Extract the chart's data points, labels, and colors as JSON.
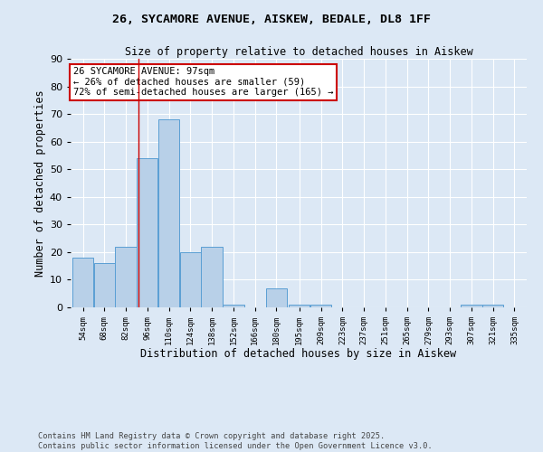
{
  "title1": "26, SYCAMORE AVENUE, AISKEW, BEDALE, DL8 1FF",
  "title2": "Size of property relative to detached houses in Aiskew",
  "xlabel": "Distribution of detached houses by size in Aiskew",
  "ylabel": "Number of detached properties",
  "bins": [
    54,
    68,
    82,
    96,
    110,
    124,
    138,
    152,
    166,
    180,
    195,
    209,
    223,
    237,
    251,
    265,
    279,
    293,
    307,
    321,
    335
  ],
  "counts": [
    18,
    16,
    22,
    54,
    68,
    20,
    22,
    1,
    0,
    7,
    1,
    1,
    0,
    0,
    0,
    0,
    0,
    0,
    1,
    1,
    0
  ],
  "bar_color": "#b8d0e8",
  "bar_edge_color": "#5a9fd4",
  "property_size": 97,
  "vline_color": "#cc0000",
  "annotation_text": "26 SYCAMORE AVENUE: 97sqm\n← 26% of detached houses are smaller (59)\n72% of semi-detached houses are larger (165) →",
  "annotation_box_color": "#ffffff",
  "annotation_box_edge_color": "#cc0000",
  "footer_text": "Contains HM Land Registry data © Crown copyright and database right 2025.\nContains public sector information licensed under the Open Government Licence v3.0.",
  "ylim": [
    0,
    90
  ],
  "background_color": "#dce8f5",
  "tick_labels": [
    "54sqm",
    "68sqm",
    "82sqm",
    "96sqm",
    "110sqm",
    "124sqm",
    "138sqm",
    "152sqm",
    "166sqm",
    "180sqm",
    "195sqm",
    "209sqm",
    "223sqm",
    "237sqm",
    "251sqm",
    "265sqm",
    "279sqm",
    "293sqm",
    "307sqm",
    "321sqm",
    "335sqm"
  ]
}
